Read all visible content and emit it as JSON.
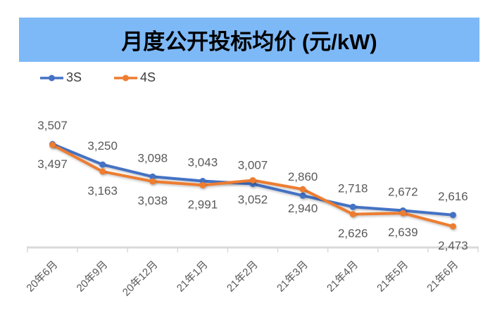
{
  "title": {
    "text": "月度公开投标均价 (元/kW)",
    "background": "#7EB9F7",
    "text_color": "#000000"
  },
  "chart_data": {
    "type": "line",
    "title": "月度公开投标均价 (元/kW)",
    "categories": [
      "20年6月",
      "20年9月",
      "20年12月",
      "21年1月",
      "21年2月",
      "21年3月",
      "21年4月",
      "21年5月",
      "21年6月"
    ],
    "series": [
      {
        "name": "3S",
        "color": "#4472C4",
        "marker": "circle",
        "label_position": "above",
        "values": [
          3507,
          3250,
          3098,
          3043,
          3007,
          2860,
          2718,
          2672,
          2616
        ]
      },
      {
        "name": "4S",
        "color": "#ED7D31",
        "marker": "circle",
        "label_position": "below",
        "values": [
          3497,
          3163,
          3038,
          2991,
          3052,
          2940,
          2626,
          2639,
          2473
        ]
      }
    ],
    "xlabel": "",
    "ylabel": "",
    "y_range_implied": [
      2473,
      3507
    ],
    "grid": false,
    "data_labels": true,
    "legend_position": "top-left",
    "axis_color": "#D9D9D9",
    "label_color": "#595959"
  }
}
